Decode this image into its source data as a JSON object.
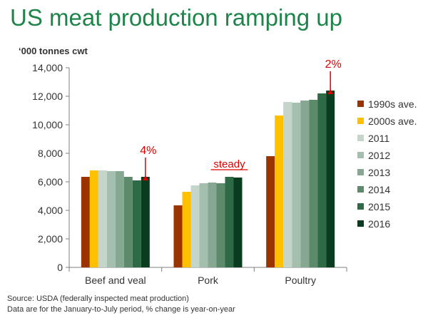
{
  "title": "US meat production ramping up",
  "unit_label": "‘000 tonnes cwt",
  "source_lines": [
    "Source: USDA (federally inspected meat production)",
    "Data are for the January-to-July period, % change is year-on-year"
  ],
  "chart_data": {
    "type": "bar",
    "categories": [
      "Beef and veal",
      "Pork",
      "Poultry"
    ],
    "series": [
      {
        "name": "1990s ave.",
        "color": "#993300",
        "values": [
          6350,
          4350,
          7800
        ]
      },
      {
        "name": "2000s ave.",
        "color": "#ffc000",
        "values": [
          6800,
          5300,
          10650
        ]
      },
      {
        "name": "2011",
        "color": "#c3d6c9",
        "values": [
          6800,
          5750,
          11600
        ]
      },
      {
        "name": "2012",
        "color": "#a4bfad",
        "values": [
          6750,
          5900,
          11550
        ]
      },
      {
        "name": "2013",
        "color": "#86a893",
        "values": [
          6750,
          5950,
          11700
        ]
      },
      {
        "name": "2014",
        "color": "#5e8a6c",
        "values": [
          6350,
          5900,
          11750
        ]
      },
      {
        "name": "2015",
        "color": "#2e6a46",
        "values": [
          6100,
          6350,
          12200
        ]
      },
      {
        "name": "2016",
        "color": "#0a3d20",
        "values": [
          6350,
          6300,
          12400
        ]
      }
    ],
    "ylim": [
      0,
      14000
    ],
    "yticks": [
      "0",
      "2,000",
      "4,000",
      "6,000",
      "8,000",
      "10,000",
      "12,000",
      "14,000"
    ],
    "ytick_values": [
      0,
      2000,
      4000,
      6000,
      8000,
      10000,
      12000,
      14000
    ],
    "legend_position": "right",
    "grid": false,
    "annotations": [
      {
        "text": "4%",
        "category_index": 0,
        "arrow": true,
        "underline": false
      },
      {
        "text": "steady",
        "category_index": 1,
        "arrow": false,
        "underline": true
      },
      {
        "text": "2%",
        "category_index": 2,
        "arrow": true,
        "underline": false
      }
    ],
    "annotation_color": "#e00000"
  }
}
